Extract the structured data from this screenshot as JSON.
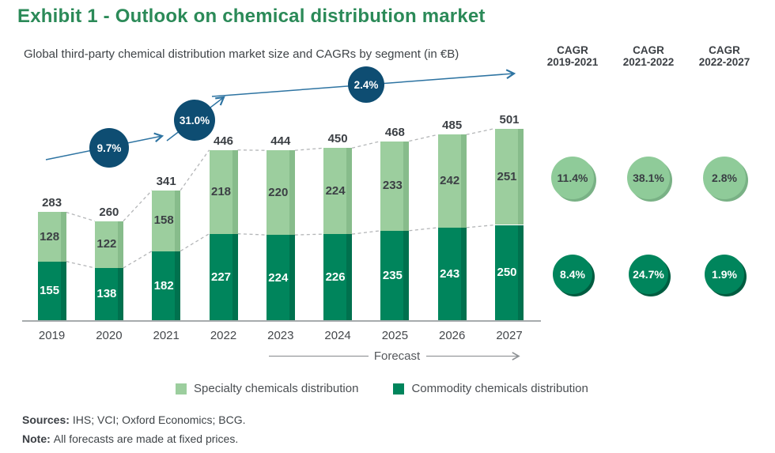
{
  "page": {
    "title": "Exhibit 1 - Outlook on chemical distribution market",
    "subtitle": "Global third-party chemical distribution market size and CAGRs by segment (in €B)",
    "forecast_label": "Forecast"
  },
  "chart_data": {
    "type": "bar",
    "stacked": true,
    "title": "Global third-party chemical distribution market size and CAGRs by segment (in €B)",
    "unit": "€B",
    "categories": [
      "2019",
      "2020",
      "2021",
      "2022",
      "2023",
      "2024",
      "2025",
      "2026",
      "2027"
    ],
    "series": [
      {
        "name": "Commodity chemicals distribution",
        "color": "#00855C",
        "values": [
          155,
          138,
          182,
          227,
          224,
          226,
          235,
          243,
          250
        ]
      },
      {
        "name": "Specialty chemicals distribution",
        "color": "#9CCE9E",
        "values": [
          128,
          122,
          158,
          218,
          220,
          224,
          233,
          242,
          251
        ]
      }
    ],
    "totals": [
      283,
      260,
      341,
      446,
      444,
      450,
      468,
      485,
      501
    ],
    "forecast_years": [
      "2023",
      "2024",
      "2025",
      "2026",
      "2027"
    ],
    "trend_annotations": [
      {
        "label": "9.7%"
      },
      {
        "label": "31.0%"
      },
      {
        "label": "2.4%"
      }
    ],
    "legend_position": "bottom",
    "ylim": [
      0,
      501
    ],
    "grid": false
  },
  "cagr_table": {
    "columns": [
      {
        "header_line1": "CAGR",
        "header_line2": "2019-2021",
        "specialty": "11.4%",
        "commodity": "8.4%"
      },
      {
        "header_line1": "CAGR",
        "header_line2": "2021-2022",
        "specialty": "38.1%",
        "commodity": "24.7%"
      },
      {
        "header_line1": "CAGR",
        "header_line2": "2022-2027",
        "specialty": "2.8%",
        "commodity": "1.9%"
      }
    ]
  },
  "legend": {
    "items": [
      {
        "label": "Specialty chemicals distribution",
        "color": "#9CCE9E"
      },
      {
        "label": "Commodity chemicals distribution",
        "color": "#00855C"
      }
    ]
  },
  "footer": {
    "sources_label": "Sources:",
    "sources_text": "IHS; VCI; Oxford Economics; BCG.",
    "note_label": "Note:",
    "note_text": "All forecasts are made at fixed prices."
  },
  "colors": {
    "title_green": "#2B8A58",
    "dark_green": "#00855C",
    "light_green": "#9CCE9E",
    "navy_bubble": "#0E4D72",
    "arrow_blue": "#2E74A2"
  }
}
